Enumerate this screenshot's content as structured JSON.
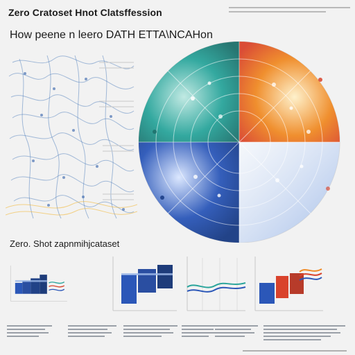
{
  "header": {
    "title": "Zero Cratoset Hnot Clatsffession",
    "subtitle": "How peene n leero DATH ETTA\\NCAHon"
  },
  "section": {
    "title": "Zero. Shot zapnmihjcataset"
  },
  "colors": {
    "teal": "#2aa59b",
    "orange": "#f08a24",
    "red": "#d9432c",
    "blue": "#2b57b8",
    "light_blue": "#9bb7e7"
  },
  "icons": {
    "server_stack": "server-stack-icon",
    "server_cube": "server-cube-icon"
  }
}
